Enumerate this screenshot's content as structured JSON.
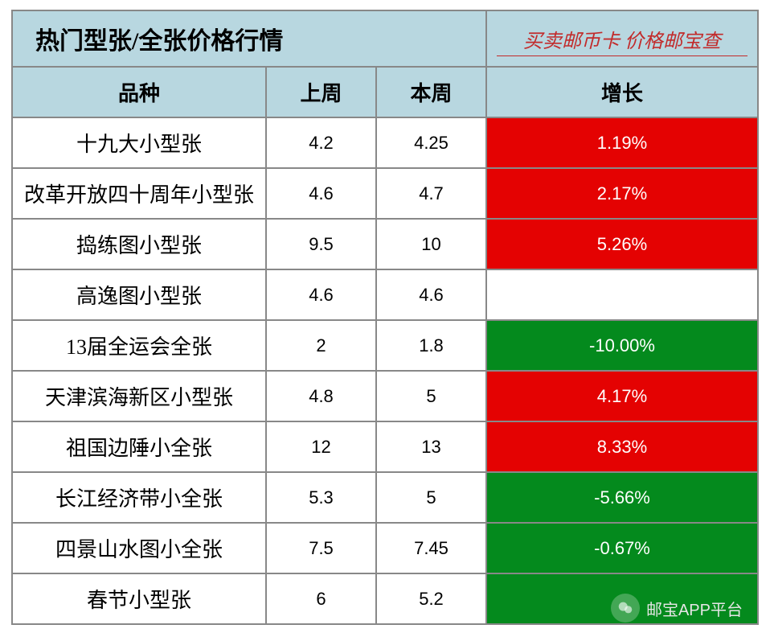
{
  "title": "热门型张/全张价格行情",
  "slogan": "买卖邮币卡  价格邮宝查",
  "columns": {
    "name": "品种",
    "last": "上周",
    "this": "本周",
    "growth": "增长"
  },
  "colors": {
    "header_bg": "#b8d7e0",
    "border": "#888888",
    "up_bg": "#e40202",
    "down_bg": "#048a1d",
    "neutral_bg": "#ffffff",
    "growth_text": "#ffffff",
    "slogan_color": "#c22b2b"
  },
  "rows": [
    {
      "name": "十九大小型张",
      "last": "4.2",
      "this": "4.25",
      "growth": "1.19%",
      "dir": "up"
    },
    {
      "name": "改革开放四十周年小型张",
      "last": "4.6",
      "this": "4.7",
      "growth": "2.17%",
      "dir": "up"
    },
    {
      "name": "捣练图小型张",
      "last": "9.5",
      "this": "10",
      "growth": "5.26%",
      "dir": "up"
    },
    {
      "name": "高逸图小型张",
      "last": "4.6",
      "this": "4.6",
      "growth": "",
      "dir": "neutral"
    },
    {
      "name": "13届全运会全张",
      "last": "2",
      "this": "1.8",
      "growth": "-10.00%",
      "dir": "down"
    },
    {
      "name": "天津滨海新区小型张",
      "last": "4.8",
      "this": "5",
      "growth": "4.17%",
      "dir": "up"
    },
    {
      "name": "祖国边陲小全张",
      "last": "12",
      "this": "13",
      "growth": "8.33%",
      "dir": "up"
    },
    {
      "name": "长江经济带小全张",
      "last": "5.3",
      "this": "5",
      "growth": "-5.66%",
      "dir": "down"
    },
    {
      "name": "四景山水图小全张",
      "last": "7.5",
      "this": "7.45",
      "growth": "-0.67%",
      "dir": "down"
    },
    {
      "name": "春节小型张",
      "last": "6",
      "this": "5.2",
      "growth": "",
      "dir": "down"
    }
  ],
  "footer": "邮宝APP平台"
}
